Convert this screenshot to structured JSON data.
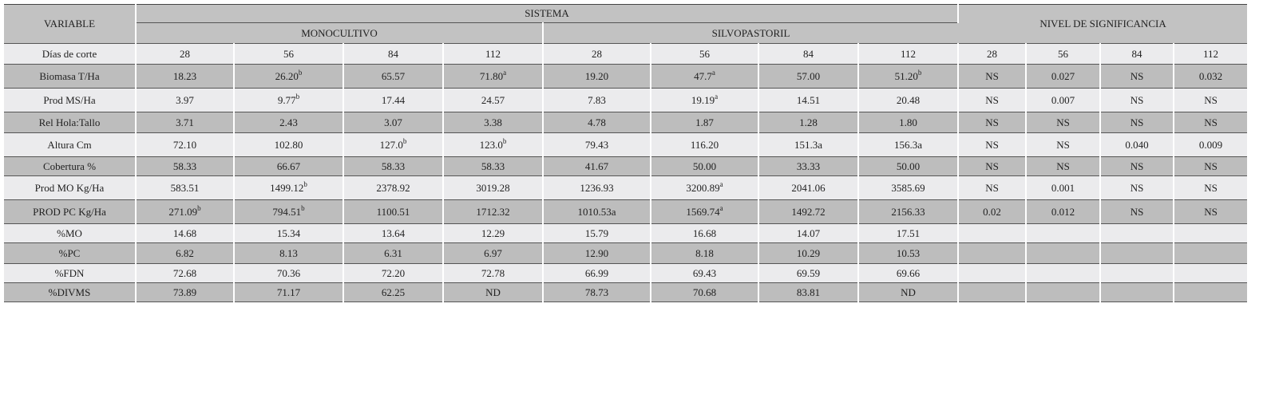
{
  "header": {
    "variable": "VARIABLE",
    "sistema": "SISTEMA",
    "monocultivo": "MONOCULTIVO",
    "silvopastoril": "SILVOPASTORIL",
    "nivel": "NIVEL DE SIGNIFICANCIA"
  },
  "days_row": {
    "label": "Días de corte",
    "cells": [
      "28",
      "56",
      "84",
      "112",
      "28",
      "56",
      "84",
      "112",
      "28",
      "56",
      "84",
      "112"
    ]
  },
  "rows": [
    {
      "label": "Biomasa T/Ha",
      "cells": [
        "18.23",
        {
          "text": "26.20",
          "sup": "b"
        },
        "65.57",
        {
          "text": "71.80",
          "sup": "a"
        },
        "19.20",
        {
          "text": "47.7",
          "sup": "a"
        },
        "57.00",
        {
          "text": "51.20",
          "sup": "b"
        },
        "NS",
        "0.027",
        "NS",
        "0.032"
      ]
    },
    {
      "label": "Prod MS/Ha",
      "cells": [
        "3.97",
        {
          "text": "9.77",
          "sup": "b"
        },
        "17.44",
        "24.57",
        "7.83",
        {
          "text": "19.19",
          "sup": "a"
        },
        "14.51",
        "20.48",
        "NS",
        "0.007",
        "NS",
        "NS"
      ]
    },
    {
      "label": "Rel Hola:Tallo",
      "cells": [
        "3.71",
        "2.43",
        "3.07",
        "3.38",
        "4.78",
        "1.87",
        "1.28",
        "1.80",
        "NS",
        "NS",
        "NS",
        "NS"
      ]
    },
    {
      "label": "Altura Cm",
      "cells": [
        "72.10",
        "102.80",
        {
          "text": "127.0",
          "sup": "b"
        },
        {
          "text": "123.0",
          "sup": "b"
        },
        "79.43",
        "116.20",
        "151.3a",
        "156.3a",
        "NS",
        "NS",
        "0.040",
        "0.009"
      ]
    },
    {
      "label": "Cobertura %",
      "cells": [
        "58.33",
        "66.67",
        "58.33",
        "58.33",
        "41.67",
        "50.00",
        "33.33",
        "50.00",
        "NS",
        "NS",
        "NS",
        "NS"
      ]
    },
    {
      "label": "Prod MO Kg/Ha",
      "cells": [
        "583.51",
        {
          "text": "1499.12",
          "sup": "b"
        },
        "2378.92",
        "3019.28",
        "1236.93",
        {
          "text": "3200.89",
          "sup": "a"
        },
        "2041.06",
        "3585.69",
        "NS",
        "0.001",
        "NS",
        "NS"
      ]
    },
    {
      "label": "PROD PC Kg/Ha",
      "cells": [
        {
          "text": "271.09",
          "sup": "b"
        },
        {
          "text": "794.51",
          "sup": "b"
        },
        "1100.51",
        "1712.32",
        "1010.53a",
        {
          "text": "1569.74",
          "sup": "a"
        },
        "1492.72",
        "2156.33",
        "0.02",
        "0.012",
        "NS",
        "NS"
      ]
    },
    {
      "label": "%MO",
      "cells": [
        "14.68",
        "15.34",
        "13.64",
        "12.29",
        "15.79",
        "16.68",
        "14.07",
        "17.51"
      ]
    },
    {
      "label": "%PC",
      "cells": [
        "6.82",
        "8.13",
        "6.31",
        "6.97",
        "12.90",
        "8.18",
        "10.29",
        "10.53"
      ]
    },
    {
      "label": "%FDN",
      "cells": [
        "72.68",
        "70.36",
        "72.20",
        "72.78",
        "66.99",
        "69.43",
        "69.59",
        "69.66"
      ]
    },
    {
      "label": "%DIVMS",
      "cells": [
        "73.89",
        "71.17",
        "62.25",
        "ND",
        "78.73",
        "70.68",
        "83.81",
        "ND"
      ]
    }
  ]
}
